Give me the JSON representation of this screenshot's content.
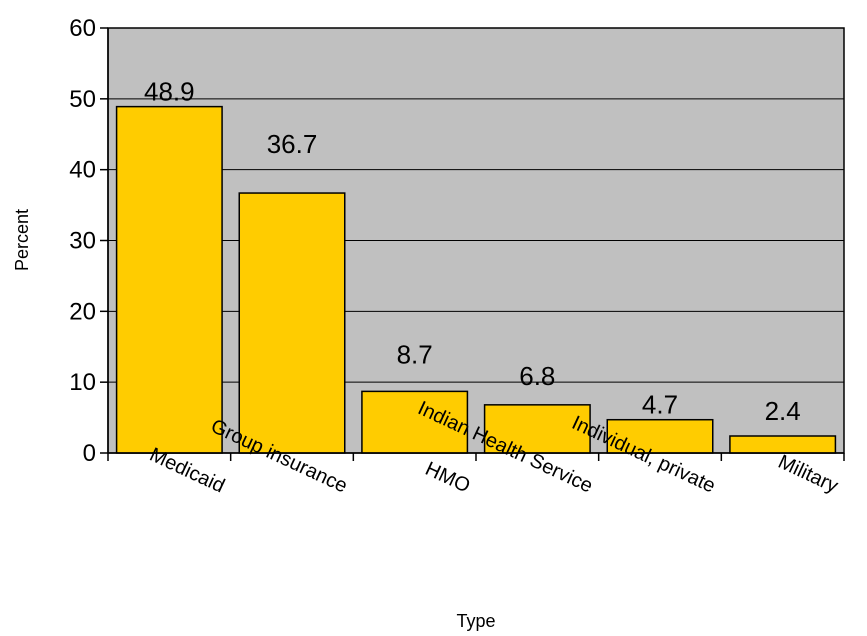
{
  "chart_data": {
    "type": "bar",
    "categories": [
      "Medicaid",
      "Group insurance",
      "HMO",
      "Indian Health Service",
      "Individual, private",
      "Military"
    ],
    "values": [
      48.9,
      36.7,
      8.7,
      6.8,
      4.7,
      2.4
    ],
    "data_labels": [
      "48.9",
      "36.7",
      "8.7",
      "6.8",
      "4.7",
      "2.4"
    ],
    "xlabel": "Type",
    "ylabel": "Percent",
    "ylim": [
      0,
      60
    ],
    "yticks": [
      "0",
      "10",
      "20",
      "30",
      "40",
      "50",
      "60"
    ],
    "grid": true,
    "legend": "none",
    "colors": {
      "bar": "#FFCC00",
      "plot_background": "#C0C0C0",
      "gridline": "#000000",
      "border": "#000000"
    }
  }
}
